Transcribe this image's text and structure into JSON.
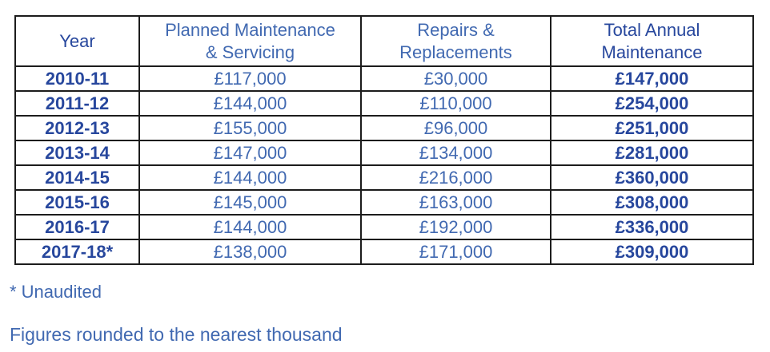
{
  "colors": {
    "background": "#ffffff",
    "border": "#1c1c1c",
    "text_bold_navy": "#27479D",
    "text_regular_blue": "#4169B1"
  },
  "table": {
    "columns": [
      {
        "label": "Year",
        "line1": "Year",
        "line2": ""
      },
      {
        "label": "Planned Maintenance & Servicing",
        "line1": "Planned Maintenance",
        "line2": "& Servicing"
      },
      {
        "label": "Repairs & Replacements",
        "line1": "Repairs &",
        "line2": "Replacements"
      },
      {
        "label": "Total Annual Maintenance",
        "line1": "Total Annual",
        "line2": "Maintenance"
      }
    ],
    "rows": [
      {
        "year": "2010-11",
        "planned": "£117,000",
        "repairs": "£30,000",
        "total": "£147,000"
      },
      {
        "year": "2011-12",
        "planned": "£144,000",
        "repairs": "£110,000",
        "total": "£254,000"
      },
      {
        "year": "2012-13",
        "planned": "£155,000",
        "repairs": "£96,000",
        "total": "£251,000"
      },
      {
        "year": "2013-14",
        "planned": "£147,000",
        "repairs": "£134,000",
        "total": "£281,000"
      },
      {
        "year": "2014-15",
        "planned": "£144,000",
        "repairs": "£216,000",
        "total": "£360,000"
      },
      {
        "year": "2015-16",
        "planned": "£145,000",
        "repairs": "£163,000",
        "total": "£308,000"
      },
      {
        "year": "2016-17",
        "planned": "£144,000",
        "repairs": "£192,000",
        "total": "£336,000"
      },
      {
        "year": "2017-18*",
        "planned": "£138,000",
        "repairs": "£171,000",
        "total": "£309,000"
      }
    ]
  },
  "footnotes": {
    "unaudited": "* Unaudited",
    "rounding": "Figures rounded to the nearest thousand"
  }
}
